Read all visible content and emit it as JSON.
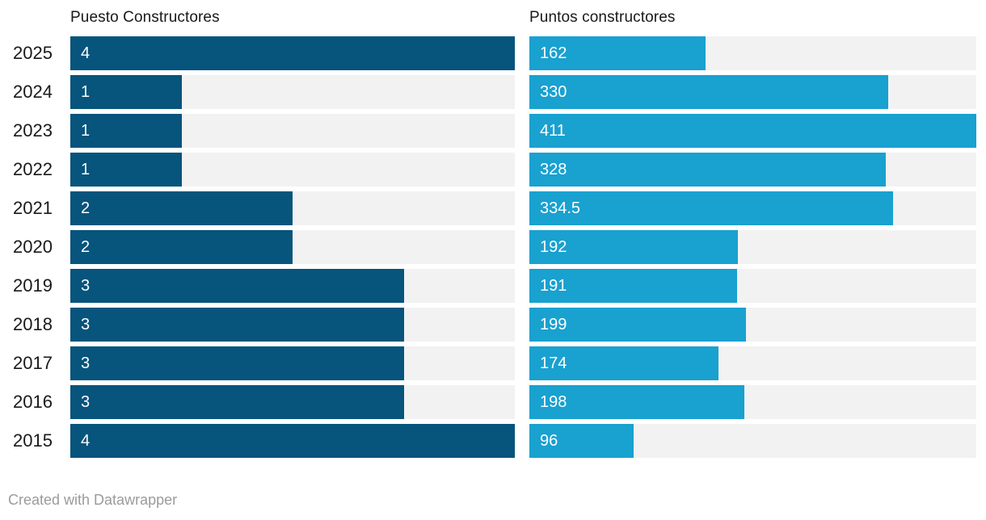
{
  "chart": {
    "left_header": "Puesto Constructores",
    "right_header": "Puntos constructores",
    "footer": "Created with Datawrapper"
  },
  "colors": {
    "puesto_bar": "#07547c",
    "puntos_bar": "#19a1d0",
    "bar_track": "#f2f2f2",
    "header_text": "#1a1a1a",
    "year_label_text": "#1a1a1a",
    "value_label_text": "#ffffff",
    "footer_text": "#9b9b9b",
    "background": "#ffffff"
  },
  "chart_data": {
    "type": "bar",
    "orientation": "horizontal",
    "layout": "two-column split bars, one row per year, value labels inside bars, no axis ticks, no gridlines, no legend",
    "categories": [
      "2025",
      "2024",
      "2023",
      "2022",
      "2021",
      "2020",
      "2019",
      "2018",
      "2017",
      "2016",
      "2015"
    ],
    "series": [
      {
        "name": "Puesto Constructores",
        "values": [
          4,
          1,
          1,
          1,
          2,
          2,
          3,
          3,
          3,
          3,
          4
        ],
        "axis_max": 4,
        "color": "#07547c"
      },
      {
        "name": "Puntos constructores",
        "values": [
          162,
          330,
          411,
          328,
          334.5,
          192,
          191,
          199,
          174,
          198,
          96
        ],
        "axis_max": 411,
        "color": "#19a1d0"
      }
    ],
    "value_labels": [
      [
        "4",
        "1",
        "1",
        "1",
        "2",
        "2",
        "3",
        "3",
        "3",
        "3",
        "4"
      ],
      [
        "162",
        "330",
        "411",
        "328",
        "334.5",
        "192",
        "191",
        "199",
        "174",
        "198",
        "96"
      ]
    ],
    "footer": "Created with Datawrapper"
  }
}
